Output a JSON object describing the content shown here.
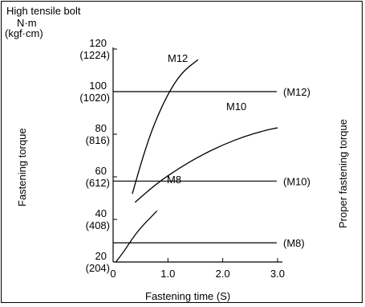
{
  "chart_data": {
    "type": "line",
    "title": "High tensile bolt",
    "y_unit_top": "N·m",
    "y_unit_bottom": "(kgf·cm)",
    "xlabel": "Fastening time (S)",
    "ylabel": "Fastening torque",
    "ylabel_right": "Proper fastening torque",
    "xlim": [
      0,
      3.0
    ],
    "ylim": [
      20,
      120
    ],
    "x_ticks": [
      {
        "value": 0,
        "label": "0"
      },
      {
        "value": 1.0,
        "label": "1.0"
      },
      {
        "value": 2.0,
        "label": "2.0"
      },
      {
        "value": 3.0,
        "label": "3.0"
      }
    ],
    "y_ticks": [
      {
        "value": 120,
        "label": "120",
        "sub": "(1224)"
      },
      {
        "value": 100,
        "label": "100",
        "sub": "(1020)"
      },
      {
        "value": 80,
        "label": "80",
        "sub": "(816)"
      },
      {
        "value": 60,
        "label": "60",
        "sub": "(612)"
      },
      {
        "value": 40,
        "label": "40",
        "sub": "(408)"
      },
      {
        "value": 20,
        "label": "20",
        "sub": "(204)"
      }
    ],
    "series": [
      {
        "name": "M12",
        "x": [
          0.35,
          0.55,
          0.75,
          1.0,
          1.25,
          1.55
        ],
        "y": [
          52,
          70,
          85,
          99,
          109,
          115
        ]
      },
      {
        "name": "M10",
        "x": [
          0.4,
          0.8,
          1.2,
          1.6,
          2.0,
          2.4,
          2.8,
          3.0
        ],
        "y": [
          48,
          57,
          64,
          70,
          75,
          79,
          82,
          83
        ]
      },
      {
        "name": "M8",
        "x": [
          0.05,
          0.2,
          0.35,
          0.5,
          0.65,
          0.8
        ],
        "y": [
          20,
          25,
          31,
          36,
          40,
          44
        ]
      }
    ],
    "reference_lines": [
      {
        "name": "(M12)",
        "y": 100
      },
      {
        "name": "(M10)",
        "y": 58
      },
      {
        "name": "(M8)",
        "y": 29
      }
    ],
    "grid": false,
    "legend": "none"
  }
}
